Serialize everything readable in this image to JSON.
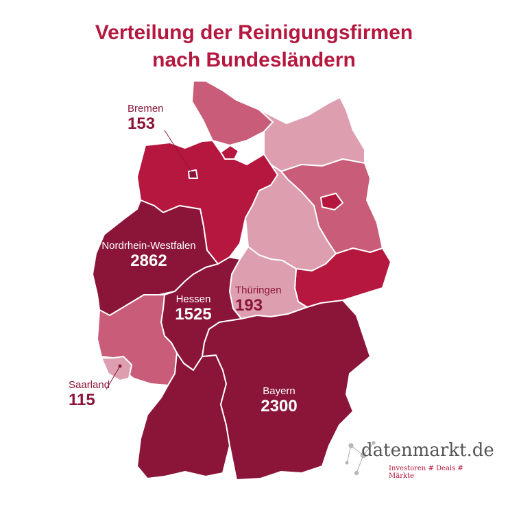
{
  "title_line1": "Verteilung der Reinigungsfirmen",
  "title_line2": "nach Bundesländern",
  "colors": {
    "darkest": "#8b1538",
    "dark": "#b5173f",
    "medium": "#c95c78",
    "light": "#dd9fb0"
  },
  "states": {
    "nrw": {
      "name": "Nordrhein-Westfalen",
      "value": "2862"
    },
    "hessen": {
      "name": "Hessen",
      "value": "1525"
    },
    "bayern": {
      "name": "Bayern",
      "value": "2300"
    },
    "thueringen": {
      "name": "Thüringen",
      "value": "193"
    },
    "bremen": {
      "name": "Bremen",
      "value": "153"
    },
    "saarland": {
      "name": "Saarland",
      "value": "115"
    }
  },
  "logo": {
    "brand": "datenmarkt.de",
    "tagline": "Investoren # Deals # Märkte",
    "icon": "network-dots-icon"
  }
}
